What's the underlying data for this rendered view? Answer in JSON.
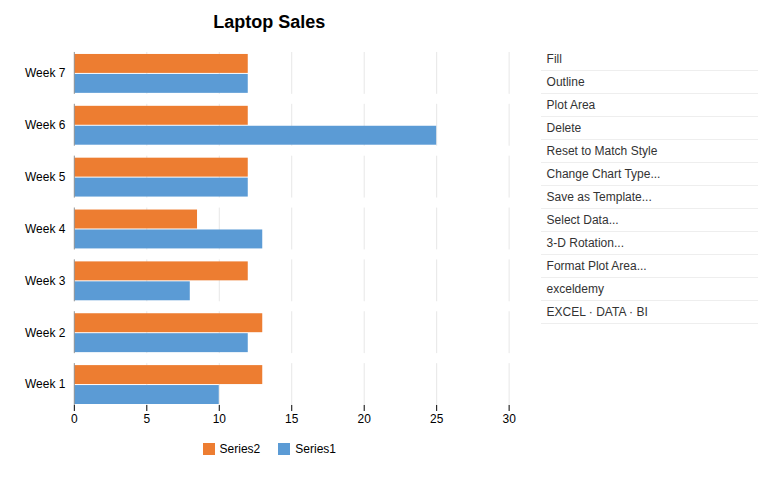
{
  "chart_data": {
    "type": "bar",
    "orientation": "horizontal",
    "title": "Laptop Sales",
    "categories": [
      "Week 1",
      "Week 2",
      "Week 3",
      "Week 4",
      "Week 5",
      "Week 6",
      "Week 7"
    ],
    "series": [
      {
        "name": "Series1",
        "color": "#5B9BD5",
        "values": [
          10,
          12,
          8,
          13,
          12,
          25,
          12
        ]
      },
      {
        "name": "Series2",
        "color": "#ED7D31",
        "values": [
          13,
          13,
          12,
          8.5,
          12,
          12,
          12
        ]
      }
    ],
    "xlim": [
      0,
      30
    ],
    "xticks": [
      0,
      5,
      10,
      15,
      20,
      25,
      30
    ],
    "grid": true,
    "legend": "bottom",
    "annotations": [
      "Fill",
      "Outline",
      "Plot Area",
      "Delete",
      "Reset to Match Style",
      "Change Chart Type...",
      "Save as Template...",
      "Select Data...",
      "3-D Rotation...",
      "Format Plot Area...",
      "exceldemy",
      "EXCEL · DATA · BI"
    ]
  }
}
